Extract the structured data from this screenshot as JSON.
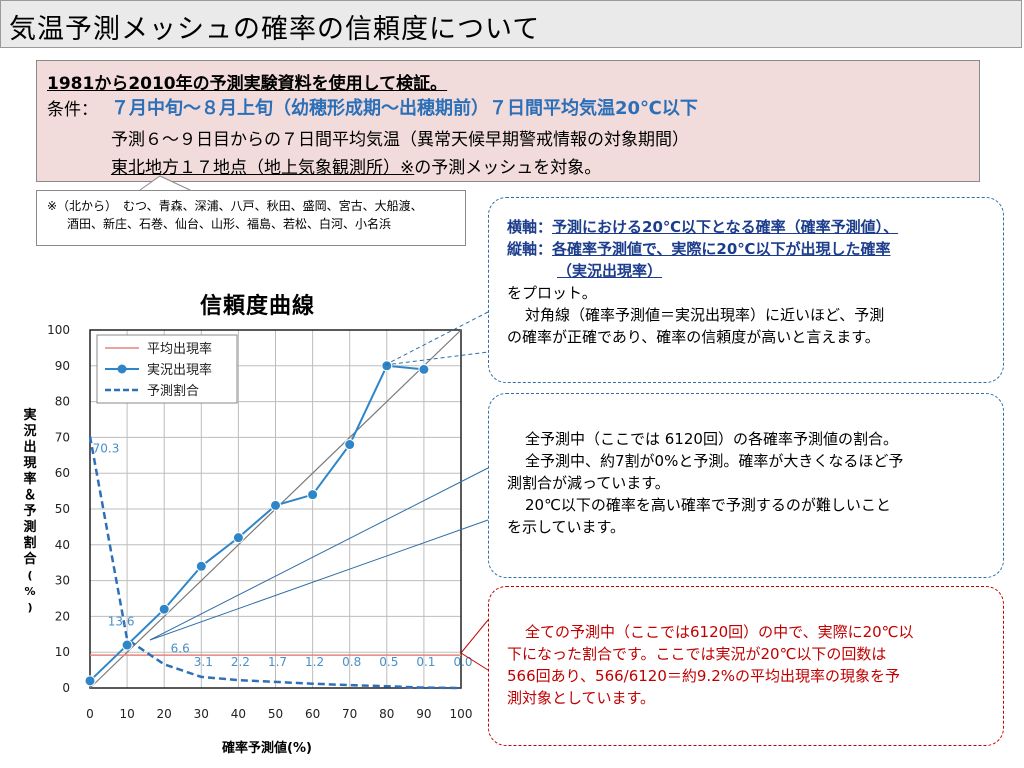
{
  "header": {
    "title": "気温予測メッシュの確率の信頼度について"
  },
  "conditions": {
    "line1": "1981から2010年の予測実験資料を使用して検証。",
    "label": "条件：",
    "period": "７月中旬～８月上旬（幼穂形成期～出穂期前）７日間平均気温20℃以下",
    "line3": "予測６～９日目からの７日間平均気温（異常天候早期警戒情報の対象期間）",
    "line4_underlined": "東北地方１７地点（地上気象観測所）※",
    "line4_rest": "の予測メッシュを対象。"
  },
  "stations": {
    "row1": "※（北から）　むつ、青森、深浦、八戸、秋田、盛岡、宮古、大船渡、",
    "row2": "酒田、新庄、石巻、仙台、山形、福島、若松、白河、小名浜"
  },
  "notes": {
    "axis_x_label": "横軸：",
    "axis_x_text": "予測における20℃以下となる確率（確率予測値）、",
    "axis_y_label": "縦軸：",
    "axis_y_text": "各確率予測値で、実際に20℃以下が出現した確率",
    "axis_y_text2": "（実況出現率）",
    "plot": "をプロット。",
    "diag1": "対角線（確率予測値＝実況出現率）に近いほど、予測",
    "diag2": "の確率が正確であり、確率の信頼度が高いと言えます。",
    "share1": "全予測中（ここでは 6120回）の各確率予測値の割合。",
    "share2": "全予測中、約7割が0%と予測。確率が大きくなるほど予",
    "share3": "測割合が減っています。",
    "share4": "20℃以下の確率を高い確率で予測するのが難しいこと",
    "share5": "を示しています。",
    "avg1": "全ての予測中（ここでは6120回）の中で、実際に20℃以",
    "avg2": "下になった割合です。ここでは実況が20℃以下の回数は",
    "avg3": "566回あり、566/6120＝約9.2%の平均出現率の現象を予",
    "avg4": "測対象としています。"
  },
  "chart_data": {
    "type": "line",
    "title": "信頼度曲線",
    "xlabel": "確率予測値(%)",
    "ylabel": "実況出現率＆予測割合(%)",
    "xlim": [
      0,
      100
    ],
    "ylim": [
      0,
      100
    ],
    "xticks": [
      "0",
      "10",
      "20",
      "30",
      "40",
      "50",
      "60",
      "70",
      "80",
      "90",
      "100"
    ],
    "yticks": [
      "0",
      "10",
      "20",
      "30",
      "40",
      "50",
      "60",
      "70",
      "80",
      "90",
      "100"
    ],
    "grid": true,
    "legend_position": "top-left",
    "series": [
      {
        "name": "平均出現率",
        "color": "#e8847e",
        "x": [
          0,
          100
        ],
        "values": [
          9.2,
          9.2
        ]
      },
      {
        "name": "実況出現率",
        "color": "#2e86c8",
        "x": [
          0,
          10,
          20,
          30,
          40,
          50,
          60,
          70,
          80,
          90
        ],
        "values": [
          2,
          12,
          22,
          34,
          42,
          51,
          54,
          68,
          90,
          89
        ]
      },
      {
        "name": "予測割合",
        "color": "#2e6fb8",
        "x": [
          0,
          10,
          20,
          30,
          40,
          50,
          60,
          70,
          80,
          90,
          100
        ],
        "values": [
          70.3,
          13.6,
          6.6,
          3.1,
          2.2,
          1.7,
          1.2,
          0.8,
          0.5,
          0.1,
          0.0
        ],
        "labels": [
          "70.3",
          "13.6",
          "6.6",
          "3.1",
          "2.2",
          "1.7",
          "1.2",
          "0.8",
          "0.5",
          "0.1",
          "0.0"
        ]
      }
    ]
  }
}
